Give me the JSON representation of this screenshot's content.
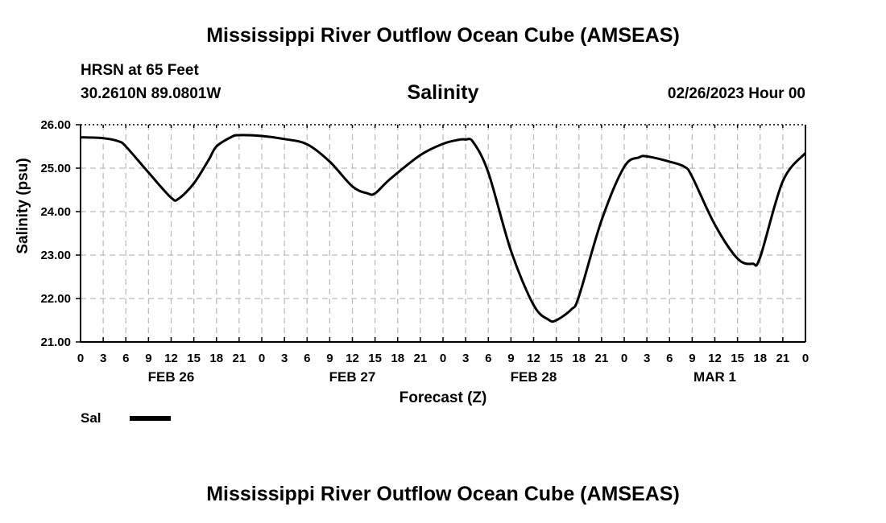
{
  "header": {
    "title_top": "Mississippi River Outflow Ocean Cube (AMSEAS)",
    "title_bottom": "Mississippi River Outflow Ocean Cube (AMSEAS)",
    "station": "HRSN at 65 Feet",
    "location": "30.2610N  89.0801W",
    "timestamp": "02/26/2023 Hour 00"
  },
  "legend": {
    "label": "Sal",
    "color": "#000000"
  },
  "chart_data": {
    "type": "line",
    "title": "Salinity",
    "xlabel": "Forecast (Z)",
    "ylabel": "Salinity (psu)",
    "ylim": [
      21.0,
      26.0
    ],
    "yticks": [
      "21.00",
      "22.00",
      "23.00",
      "24.00",
      "25.00",
      "26.00"
    ],
    "xlim_hours": [
      0,
      96
    ],
    "xticks": [
      "0",
      "3",
      "6",
      "9",
      "12",
      "15",
      "18",
      "21",
      "0",
      "3",
      "6",
      "9",
      "12",
      "15",
      "18",
      "21",
      "0",
      "3",
      "6",
      "9",
      "12",
      "15",
      "18",
      "21",
      "0",
      "3",
      "6",
      "9",
      "12",
      "15",
      "18",
      "21",
      "0"
    ],
    "day_labels": [
      {
        "label": "FEB 26",
        "hour": 12
      },
      {
        "label": "FEB 27",
        "hour": 36
      },
      {
        "label": "FEB 28",
        "hour": 60
      },
      {
        "label": "MAR 1",
        "hour": 84
      }
    ],
    "grid": true,
    "series": [
      {
        "name": "Sal",
        "x": [
          0,
          3,
          5,
          6,
          9,
          12,
          13,
          15,
          17,
          18,
          20,
          21,
          24,
          27,
          30,
          33,
          36,
          38,
          39,
          41,
          45,
          48,
          50,
          51,
          52,
          54,
          57,
          60,
          62,
          63,
          65,
          66,
          69,
          72,
          74,
          75,
          78,
          80,
          81,
          84,
          87,
          89,
          90,
          93,
          96
        ],
        "y": [
          25.71,
          25.69,
          25.62,
          25.5,
          24.9,
          24.32,
          24.3,
          24.65,
          25.2,
          25.5,
          25.72,
          25.76,
          25.74,
          25.67,
          25.55,
          25.15,
          24.58,
          24.42,
          24.42,
          24.75,
          25.3,
          25.56,
          25.65,
          25.66,
          25.6,
          24.9,
          23.1,
          21.85,
          21.51,
          21.5,
          21.75,
          22.05,
          23.8,
          25.03,
          25.25,
          25.27,
          25.15,
          25.03,
          24.8,
          23.7,
          22.92,
          22.8,
          22.95,
          24.7,
          25.35
        ]
      }
    ]
  }
}
